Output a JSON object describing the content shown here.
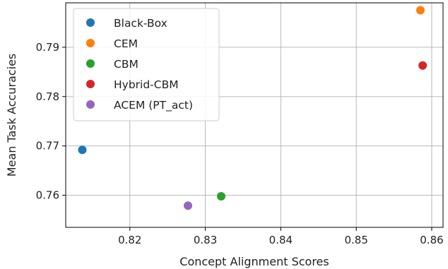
{
  "chart_data": {
    "type": "scatter",
    "title": "",
    "xlabel": "Concept Alignment Scores",
    "ylabel": "Mean Task Accuracies",
    "xlim": [
      0.8115,
      0.8615
    ],
    "ylim": [
      0.7535,
      0.799
    ],
    "xticks": [
      0.82,
      0.83,
      0.84,
      0.85,
      0.86
    ],
    "yticks": [
      0.76,
      0.77,
      0.78,
      0.79
    ],
    "xtick_labels": [
      "0.82",
      "0.83",
      "0.84",
      "0.85",
      "0.86"
    ],
    "ytick_labels": [
      "0.76",
      "0.77",
      "0.78",
      "0.79"
    ],
    "grid": true,
    "legend_position": "upper-left",
    "series": [
      {
        "name": "Black-Box",
        "color": "#1f77b4",
        "points": [
          {
            "x": 0.8137,
            "y": 0.7692
          }
        ]
      },
      {
        "name": "CEM",
        "color": "#ff7f0e",
        "points": [
          {
            "x": 0.8585,
            "y": 0.7975
          }
        ]
      },
      {
        "name": "CBM",
        "color": "#2ca02c",
        "points": [
          {
            "x": 0.8321,
            "y": 0.7598
          }
        ]
      },
      {
        "name": "Hybrid-CBM",
        "color": "#d62728",
        "points": [
          {
            "x": 0.8588,
            "y": 0.7863
          }
        ]
      },
      {
        "name": "ACEM (PT_act)",
        "color": "#9467bd",
        "points": [
          {
            "x": 0.8277,
            "y": 0.7579
          }
        ]
      }
    ]
  }
}
